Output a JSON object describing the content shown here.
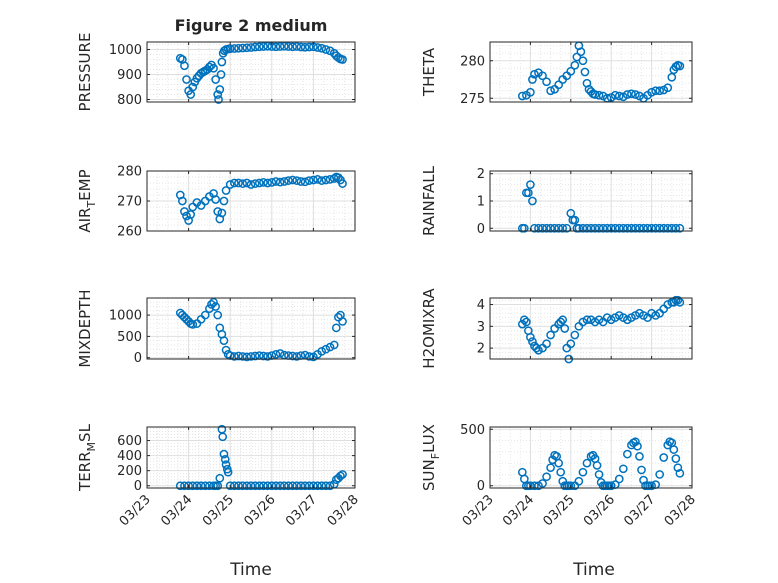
{
  "figure": {
    "title": "Figure 2 medium",
    "x_tick_labels": [
      "03/23",
      "03/24",
      "03/25",
      "03/26",
      "03/27",
      "03/28"
    ],
    "x_label": "Time"
  },
  "chart_data": [
    {
      "type": "scatter",
      "ylabel": "PRESSURE",
      "ylim": [
        790,
        1030
      ],
      "yticks": [
        800,
        900,
        1000
      ],
      "ytick_labels": [
        "800",
        "900",
        "1000"
      ],
      "xlim": [
        0,
        5
      ],
      "x_unit": "days since 03/23",
      "grid": true,
      "marker_color": "#0072bd",
      "x": [
        0.8,
        0.85,
        0.9,
        0.95,
        1.0,
        1.05,
        1.1,
        1.15,
        1.2,
        1.25,
        1.3,
        1.35,
        1.4,
        1.45,
        1.5,
        1.55,
        1.6,
        1.65,
        1.7,
        1.72,
        1.75,
        1.78,
        1.8,
        1.83,
        1.86,
        1.9,
        1.95,
        2.0,
        2.1,
        2.2,
        2.3,
        2.4,
        2.5,
        2.6,
        2.7,
        2.8,
        2.9,
        3.0,
        3.1,
        3.2,
        3.3,
        3.4,
        3.5,
        3.6,
        3.7,
        3.8,
        3.9,
        4.0,
        4.1,
        4.2,
        4.3,
        4.4,
        4.5,
        4.55,
        4.6,
        4.65,
        4.7
      ],
      "y": [
        965,
        960,
        935,
        880,
        835,
        820,
        850,
        870,
        885,
        895,
        905,
        910,
        915,
        920,
        930,
        938,
        925,
        880,
        820,
        800,
        840,
        900,
        950,
        985,
        995,
        1000,
        1002,
        1003,
        1004,
        1005,
        1006,
        1007,
        1008,
        1010,
        1011,
        1012,
        1013,
        1012,
        1011,
        1012,
        1013,
        1012,
        1011,
        1012,
        1010,
        1009,
        1010,
        1011,
        1008,
        1005,
        1000,
        995,
        985,
        975,
        968,
        962,
        960
      ]
    },
    {
      "type": "scatter",
      "ylabel": "THETA",
      "ylim": [
        274.5,
        282.5
      ],
      "yticks": [
        275,
        280
      ],
      "ytick_labels": [
        "275",
        "280"
      ],
      "xlim": [
        0,
        5
      ],
      "grid": true,
      "marker_color": "#0072bd",
      "x": [
        0.8,
        0.9,
        1.0,
        1.05,
        1.1,
        1.2,
        1.3,
        1.4,
        1.5,
        1.6,
        1.7,
        1.8,
        1.9,
        2.0,
        2.1,
        2.15,
        2.2,
        2.25,
        2.3,
        2.35,
        2.4,
        2.45,
        2.5,
        2.55,
        2.6,
        2.7,
        2.8,
        2.9,
        3.0,
        3.1,
        3.2,
        3.3,
        3.4,
        3.5,
        3.6,
        3.7,
        3.8,
        3.9,
        4.0,
        4.1,
        4.2,
        4.3,
        4.4,
        4.5,
        4.55,
        4.6,
        4.65,
        4.7
      ],
      "y": [
        275.3,
        275.4,
        275.8,
        277.5,
        278.2,
        278.4,
        278.0,
        277.2,
        276.0,
        276.2,
        276.8,
        277.5,
        278.0,
        278.6,
        279.4,
        280.5,
        282.0,
        281.2,
        280.0,
        278.5,
        277.0,
        276.2,
        275.9,
        275.6,
        275.5,
        275.4,
        275.3,
        275.0,
        275.1,
        275.4,
        275.3,
        275.2,
        275.5,
        275.6,
        275.5,
        275.3,
        275.0,
        275.4,
        275.8,
        276.0,
        276.0,
        276.1,
        276.4,
        277.8,
        278.8,
        279.2,
        279.4,
        279.3
      ]
    },
    {
      "type": "scatter",
      "ylabel": "AIR_TEMP",
      "ylabel_parts": [
        "AIR",
        "T",
        "EMP"
      ],
      "ylim": [
        260,
        280
      ],
      "yticks": [
        260,
        270,
        280
      ],
      "ytick_labels": [
        "260",
        "270",
        "280"
      ],
      "xlim": [
        0,
        5
      ],
      "grid": true,
      "marker_color": "#0072bd",
      "x": [
        0.8,
        0.85,
        0.9,
        0.95,
        1.0,
        1.05,
        1.1,
        1.2,
        1.3,
        1.4,
        1.5,
        1.6,
        1.65,
        1.7,
        1.75,
        1.8,
        1.85,
        1.9,
        2.0,
        2.1,
        2.2,
        2.3,
        2.4,
        2.5,
        2.6,
        2.7,
        2.8,
        2.9,
        3.0,
        3.1,
        3.2,
        3.3,
        3.4,
        3.5,
        3.6,
        3.7,
        3.8,
        3.9,
        4.0,
        4.1,
        4.2,
        4.3,
        4.4,
        4.5,
        4.55,
        4.6,
        4.65,
        4.7
      ],
      "y": [
        272.0,
        270.0,
        266.5,
        265.0,
        263.5,
        265.5,
        268.0,
        269.5,
        268.5,
        270.0,
        271.5,
        272.5,
        270.5,
        266.5,
        264.0,
        266.0,
        270.0,
        273.5,
        275.5,
        276.0,
        276.0,
        275.8,
        276.0,
        275.5,
        275.8,
        276.0,
        276.2,
        276.0,
        276.2,
        276.5,
        276.3,
        276.5,
        276.8,
        277.0,
        276.8,
        276.5,
        276.4,
        276.8,
        277.0,
        277.2,
        276.8,
        277.0,
        277.2,
        277.5,
        278.0,
        277.8,
        277.0,
        275.8
      ]
    },
    {
      "type": "scatter",
      "ylabel": "RAINFALL",
      "ylim": [
        -0.1,
        2.1
      ],
      "yticks": [
        0,
        1,
        2
      ],
      "ytick_labels": [
        "0",
        "1",
        "2"
      ],
      "xlim": [
        0,
        5
      ],
      "grid": true,
      "marker_color": "#0072bd",
      "x": [
        0.8,
        0.85,
        0.9,
        0.95,
        1.0,
        1.05,
        1.1,
        1.2,
        1.3,
        1.4,
        1.5,
        1.6,
        1.7,
        1.8,
        1.9,
        2.0,
        2.05,
        2.1,
        2.15,
        2.2,
        2.3,
        2.4,
        2.5,
        2.6,
        2.7,
        2.8,
        2.9,
        3.0,
        3.1,
        3.2,
        3.3,
        3.4,
        3.5,
        3.6,
        3.7,
        3.8,
        3.9,
        4.0,
        4.1,
        4.2,
        4.3,
        4.4,
        4.5,
        4.6,
        4.7
      ],
      "y": [
        0,
        0,
        1.3,
        1.3,
        1.6,
        1.0,
        0,
        0,
        0,
        0,
        0,
        0,
        0,
        0,
        0,
        0.55,
        0.3,
        0.3,
        0,
        0,
        0,
        0,
        0,
        0,
        0,
        0,
        0,
        0,
        0,
        0,
        0,
        0,
        0,
        0,
        0,
        0,
        0,
        0,
        0,
        0,
        0,
        0,
        0,
        0,
        0
      ]
    },
    {
      "type": "scatter",
      "ylabel": "MIXDEPTH",
      "ylim": [
        -30,
        1400
      ],
      "yticks": [
        0,
        500,
        1000
      ],
      "ytick_labels": [
        "0",
        "500",
        "1000"
      ],
      "xlim": [
        0,
        5
      ],
      "grid": true,
      "marker_color": "#0072bd",
      "x": [
        0.8,
        0.85,
        0.9,
        0.95,
        1.0,
        1.05,
        1.1,
        1.2,
        1.3,
        1.4,
        1.5,
        1.55,
        1.6,
        1.65,
        1.7,
        1.75,
        1.8,
        1.85,
        1.9,
        1.95,
        2.0,
        2.1,
        2.2,
        2.3,
        2.4,
        2.5,
        2.6,
        2.7,
        2.8,
        2.9,
        3.0,
        3.1,
        3.2,
        3.3,
        3.4,
        3.5,
        3.6,
        3.7,
        3.8,
        3.9,
        4.0,
        4.1,
        4.2,
        4.3,
        4.4,
        4.5,
        4.55,
        4.6,
        4.65,
        4.7
      ],
      "y": [
        1050,
        1000,
        950,
        900,
        850,
        800,
        780,
        800,
        900,
        1000,
        1150,
        1250,
        1300,
        1200,
        1000,
        700,
        550,
        400,
        180,
        80,
        50,
        30,
        40,
        30,
        20,
        30,
        40,
        50,
        40,
        30,
        50,
        80,
        100,
        60,
        50,
        40,
        30,
        50,
        60,
        30,
        20,
        80,
        150,
        200,
        250,
        300,
        700,
        950,
        1000,
        850
      ]
    },
    {
      "type": "scatter",
      "ylabel": "H2OMIXRA",
      "ylim": [
        1.5,
        4.3
      ],
      "yticks": [
        2,
        3,
        4
      ],
      "ytick_labels": [
        "2",
        "3",
        "4"
      ],
      "xlim": [
        0,
        5
      ],
      "grid": true,
      "marker_color": "#0072bd",
      "x": [
        0.8,
        0.85,
        0.9,
        0.95,
        1.0,
        1.05,
        1.1,
        1.15,
        1.2,
        1.3,
        1.4,
        1.5,
        1.6,
        1.7,
        1.75,
        1.8,
        1.85,
        1.9,
        1.95,
        2.0,
        2.1,
        2.2,
        2.3,
        2.4,
        2.5,
        2.6,
        2.7,
        2.8,
        2.9,
        3.0,
        3.1,
        3.2,
        3.3,
        3.4,
        3.5,
        3.6,
        3.7,
        3.8,
        3.9,
        4.0,
        4.1,
        4.2,
        4.3,
        4.4,
        4.5,
        4.55,
        4.6,
        4.65,
        4.7
      ],
      "y": [
        3.1,
        3.3,
        3.2,
        2.8,
        2.5,
        2.3,
        2.1,
        2.0,
        1.9,
        2.0,
        2.2,
        2.6,
        2.9,
        3.1,
        3.2,
        3.3,
        2.9,
        2.0,
        1.5,
        2.2,
        2.6,
        3.0,
        3.2,
        3.3,
        3.3,
        3.2,
        3.3,
        3.2,
        3.4,
        3.3,
        3.4,
        3.5,
        3.4,
        3.3,
        3.4,
        3.5,
        3.6,
        3.5,
        3.4,
        3.6,
        3.5,
        3.6,
        3.8,
        4.0,
        4.1,
        4.1,
        4.2,
        4.2,
        4.1
      ]
    },
    {
      "type": "scatter",
      "ylabel": "TERR_MSL",
      "ylabel_parts": [
        "TERR",
        "M",
        "SL"
      ],
      "ylim": [
        -30,
        780
      ],
      "yticks": [
        0,
        200,
        400,
        600
      ],
      "ytick_labels": [
        "0",
        "200",
        "400",
        "600"
      ],
      "xlim": [
        0,
        5
      ],
      "grid": true,
      "marker_color": "#0072bd",
      "x": [
        0.8,
        0.9,
        1.0,
        1.1,
        1.2,
        1.3,
        1.4,
        1.5,
        1.6,
        1.65,
        1.7,
        1.75,
        1.8,
        1.82,
        1.85,
        1.88,
        1.9,
        1.93,
        1.95,
        2.0,
        2.1,
        2.2,
        2.3,
        2.4,
        2.5,
        2.6,
        2.7,
        2.8,
        2.9,
        3.0,
        3.1,
        3.2,
        3.3,
        3.4,
        3.5,
        3.6,
        3.7,
        3.8,
        3.9,
        4.0,
        4.1,
        4.2,
        4.3,
        4.4,
        4.5,
        4.55,
        4.6,
        4.65,
        4.7
      ],
      "y": [
        0,
        0,
        0,
        0,
        0,
        0,
        0,
        0,
        0,
        0,
        0,
        100,
        750,
        650,
        420,
        350,
        280,
        220,
        180,
        0,
        0,
        0,
        0,
        0,
        0,
        0,
        0,
        0,
        0,
        0,
        0,
        0,
        0,
        0,
        0,
        0,
        0,
        0,
        0,
        0,
        0,
        0,
        0,
        0,
        20,
        80,
        100,
        130,
        150
      ]
    },
    {
      "type": "scatter",
      "ylabel": "SUN_FLUX",
      "ylabel_parts": [
        "SUN",
        "F",
        "LUX"
      ],
      "ylim": [
        -20,
        520
      ],
      "yticks": [
        0,
        500
      ],
      "ytick_labels": [
        "0",
        "500"
      ],
      "xlim": [
        0,
        5
      ],
      "grid": true,
      "marker_color": "#0072bd",
      "x": [
        0.8,
        0.85,
        0.9,
        0.95,
        1.0,
        1.1,
        1.2,
        1.3,
        1.4,
        1.5,
        1.55,
        1.6,
        1.65,
        1.7,
        1.75,
        1.8,
        1.85,
        1.9,
        1.95,
        2.0,
        2.1,
        2.2,
        2.3,
        2.4,
        2.5,
        2.55,
        2.6,
        2.65,
        2.7,
        2.75,
        2.8,
        2.85,
        2.9,
        2.95,
        3.0,
        3.1,
        3.2,
        3.3,
        3.4,
        3.5,
        3.55,
        3.6,
        3.65,
        3.7,
        3.75,
        3.8,
        3.85,
        3.9,
        3.95,
        4.0,
        4.1,
        4.2,
        4.3,
        4.4,
        4.45,
        4.5,
        4.55,
        4.6,
        4.65,
        4.7
      ],
      "y": [
        120,
        60,
        0,
        0,
        0,
        0,
        0,
        20,
        80,
        160,
        230,
        270,
        260,
        200,
        120,
        40,
        0,
        0,
        0,
        0,
        0,
        40,
        120,
        200,
        260,
        270,
        240,
        180,
        100,
        30,
        0,
        0,
        0,
        0,
        0,
        10,
        60,
        150,
        280,
        360,
        380,
        390,
        350,
        260,
        140,
        50,
        0,
        0,
        0,
        0,
        10,
        100,
        250,
        360,
        390,
        380,
        320,
        240,
        160,
        110
      ]
    }
  ]
}
